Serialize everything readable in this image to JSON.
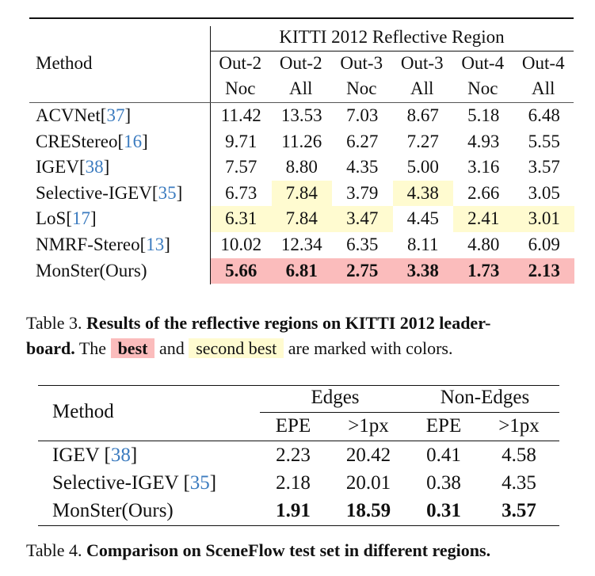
{
  "colors": {
    "best": "#fbbcbc",
    "second_best": "#fffbd0",
    "citation": "#3b7bbf"
  },
  "table3": {
    "method_header": "Method",
    "group_header": "KITTI 2012 Reflective Region",
    "columns": [
      {
        "top": "Out-2",
        "bottom": "Noc"
      },
      {
        "top": "Out-2",
        "bottom": "All"
      },
      {
        "top": "Out-3",
        "bottom": "Noc"
      },
      {
        "top": "Out-3",
        "bottom": "All"
      },
      {
        "top": "Out-4",
        "bottom": "Noc"
      },
      {
        "top": "Out-4",
        "bottom": "All"
      }
    ],
    "rows": [
      {
        "method": "ACVNet",
        "ref": "37",
        "values": [
          "11.42",
          "13.53",
          "7.03",
          "8.67",
          "5.18",
          "6.48"
        ],
        "marks": [
          "",
          "",
          "",
          "",
          "",
          ""
        ]
      },
      {
        "method": "CREStereo",
        "ref": "16",
        "values": [
          "9.71",
          "11.26",
          "6.27",
          "7.27",
          "4.93",
          "5.55"
        ],
        "marks": [
          "",
          "",
          "",
          "",
          "",
          ""
        ]
      },
      {
        "method": "IGEV",
        "ref": "38",
        "values": [
          "7.57",
          "8.80",
          "4.35",
          "5.00",
          "3.16",
          "3.57"
        ],
        "marks": [
          "",
          "",
          "",
          "",
          "",
          ""
        ]
      },
      {
        "method": "Selective-IGEV",
        "ref": "35",
        "values": [
          "6.73",
          "7.84",
          "3.79",
          "4.38",
          "2.66",
          "3.05"
        ],
        "marks": [
          "",
          "second",
          "",
          "second",
          "",
          ""
        ]
      },
      {
        "method": "LoS",
        "ref": "17",
        "values": [
          "6.31",
          "7.84",
          "3.47",
          "4.45",
          "2.41",
          "3.01"
        ],
        "marks": [
          "second",
          "second",
          "second",
          "",
          "second",
          "second"
        ]
      },
      {
        "method": "NMRF-Stereo",
        "ref": "13",
        "values": [
          "10.02",
          "12.34",
          "6.35",
          "8.11",
          "4.80",
          "6.09"
        ],
        "marks": [
          "",
          "",
          "",
          "",
          "",
          ""
        ]
      },
      {
        "method": "MonSter(Ours)",
        "ref": "",
        "values": [
          "5.66",
          "6.81",
          "2.75",
          "3.38",
          "1.73",
          "2.13"
        ],
        "marks": [
          "best",
          "best",
          "best",
          "best",
          "best",
          "best"
        ],
        "bold": true
      }
    ],
    "caption": {
      "label": "Table 3.",
      "bold": "Results of the reflective regions on KITTI 2012 leader-",
      "bold2": "board.",
      "the": "The",
      "best": "best",
      "and": "and",
      "second_best": "second best",
      "rest": "are marked with colors."
    }
  },
  "table4": {
    "method_header": "Method",
    "groups": [
      "Edges",
      "Non-Edges"
    ],
    "subcolumns": [
      "EPE",
      ">1px",
      "EPE",
      ">1px"
    ],
    "rows": [
      {
        "method": "IGEV",
        "ref": "38",
        "values": [
          "2.23",
          "20.42",
          "0.41",
          "4.58"
        ]
      },
      {
        "method": "Selective-IGEV",
        "ref": "35",
        "values": [
          "2.18",
          "20.01",
          "0.38",
          "4.35"
        ]
      },
      {
        "method": "MonSter(Ours)",
        "ref": "",
        "values": [
          "1.91",
          "18.59",
          "0.31",
          "3.57"
        ],
        "bold": true
      }
    ],
    "caption": {
      "label": "Table 4.",
      "bold": "Comparison on SceneFlow test set in different regions."
    }
  }
}
